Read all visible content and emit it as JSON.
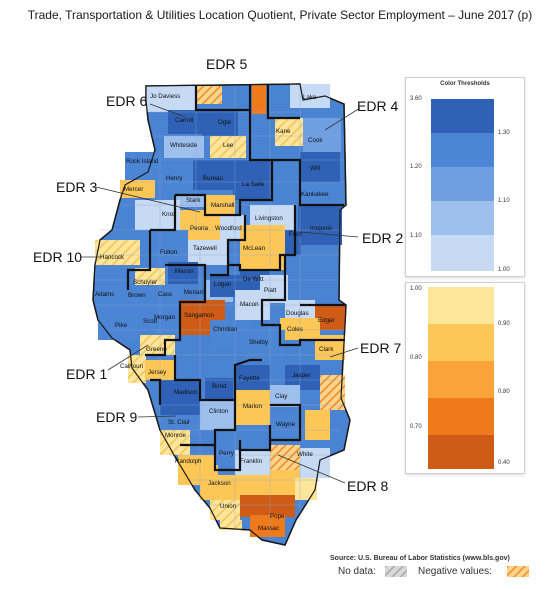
{
  "title": "Trade, Transportation & Utilities Location Quotient, Private Sector Employment – June 2017 (p)",
  "edr_labels": [
    "EDR 5",
    "EDR 6",
    "EDR 4",
    "EDR 3",
    "EDR 2",
    "EDR 10",
    "EDR 7",
    "EDR 1",
    "EDR 9",
    "EDR 8"
  ],
  "counties": [
    "Jo Daviess",
    "Lake",
    "Carroll",
    "Ogle",
    "Kane",
    "Whiteside",
    "Lee",
    "Cook",
    "Rock Island",
    "Henry",
    "Bureau",
    "La Salle",
    "Will",
    "Mercer",
    "Stark",
    "Marshall",
    "Kankakee",
    "Knox",
    "Livingston",
    "Peoria",
    "Woodford",
    "Iroquois",
    "Ford",
    "Fulton",
    "Tazewell",
    "McLean",
    "Hancock",
    "Adams",
    "Schuyler",
    "Brown",
    "Mason",
    "Menard",
    "Logan",
    "De Witt",
    "Cass",
    "Piatt",
    "Douglas",
    "Edgar",
    "Scott",
    "Morgan",
    "Sangamon",
    "Christian",
    "Macon",
    "Coles",
    "Pike",
    "Greene",
    "Shelby",
    "Clark",
    "Calhoun",
    "Jersey",
    "Madison",
    "Bond",
    "Fayette",
    "Jasper",
    "Clay",
    "St. Clair",
    "Clinton",
    "Marion",
    "Wayne",
    "Monroe",
    "Randolph",
    "Perry",
    "Franklin",
    "White",
    "Jackson",
    "Union",
    "Pope",
    "Massac"
  ],
  "legend": {
    "title": "Color Thresholds",
    "blue": {
      "colors": [
        "#2f62b6",
        "#4b85d4",
        "#6f9fe1",
        "#9dbfec",
        "#c6daf4"
      ],
      "left_ticks": [
        "3.60",
        "1.20",
        "1.10"
      ],
      "right_ticks": [
        "1.30",
        "1.10",
        "1.00"
      ]
    },
    "orange": {
      "colors": [
        "#fde59a",
        "#fdc758",
        "#f9a33a",
        "#ef7a1c",
        "#cf5c16"
      ],
      "left_ticks": [
        "1.00",
        "0.80",
        "0.70"
      ],
      "right_ticks": [
        "0.90",
        "0.80",
        "0.40"
      ]
    }
  },
  "source": "Source: U.S. Bureau of Labor Statistics (www.bls.gov)",
  "no_data_label": "No data:",
  "negative_label": "Negative values:"
}
